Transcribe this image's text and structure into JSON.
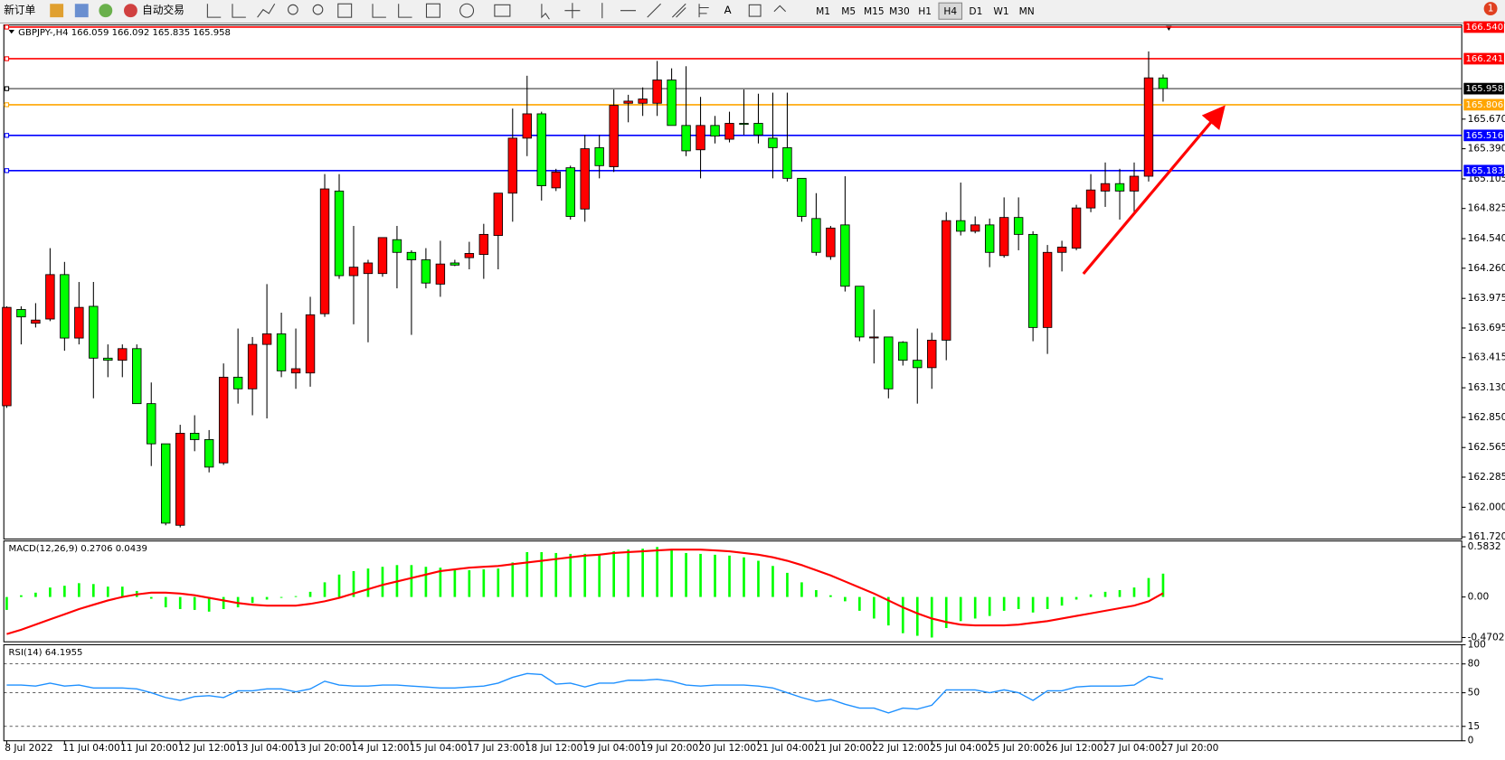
{
  "toolbar": {
    "new_order": "新订单",
    "auto_trading": "自动交易",
    "timeframes": [
      "M1",
      "M5",
      "M15",
      "M30",
      "H1",
      "H4",
      "D1",
      "W1",
      "MN"
    ],
    "active_timeframe": "H4",
    "badge": 1
  },
  "chart_data": [
    {
      "type": "candlestick",
      "title": "GBPJPY-,H4  166.059 166.092 165.835 165.958",
      "categories": [
        "8 Jul 2022",
        null,
        null,
        null,
        "11 Jul 04:00",
        null,
        null,
        null,
        "11 Jul 20:00",
        null,
        null,
        null,
        "12 Jul 12:00",
        null,
        null,
        null,
        "13 Jul 04:00",
        null,
        null,
        null,
        "13 Jul 20:00",
        null,
        null,
        null,
        "14 Jul 12:00",
        null,
        null,
        null,
        "15 Jul 04:00",
        null,
        null,
        null,
        "17 Jul 23:00",
        null,
        null,
        null,
        "18 Jul 12:00",
        null,
        null,
        null,
        "19 Jul 04:00",
        null,
        null,
        null,
        "19 Jul 20:00",
        null,
        null,
        null,
        "20 Jul 12:00",
        null,
        null,
        null,
        "21 Jul 04:00",
        null,
        null,
        null,
        "21 Jul 20:00",
        null,
        null,
        null,
        "22 Jul 12:00",
        null,
        null,
        null,
        "25 Jul 04:00",
        null,
        null,
        null,
        "25 Jul 20:00",
        null,
        null,
        null,
        "26 Jul 12:00",
        null,
        null,
        null,
        "27 Jul 04:00",
        null,
        null,
        null,
        "27 Jul 20:00"
      ],
      "open": [
        162.96,
        163.87,
        163.74,
        163.78,
        164.2,
        163.6,
        163.9,
        163.41,
        163.39,
        163.5,
        162.98,
        162.6,
        161.83,
        162.7,
        162.64,
        162.42,
        163.23,
        163.12,
        163.54,
        163.64,
        163.27,
        163.27,
        163.83,
        164.99,
        164.19,
        164.21,
        164.21,
        164.53,
        164.41,
        164.34,
        164.11,
        164.31,
        164.36,
        164.39,
        164.57,
        164.97,
        165.49,
        165.72,
        165.02,
        165.21,
        164.82,
        165.4,
        165.22,
        165.82,
        165.82,
        165.82,
        166.04,
        165.61,
        165.38,
        165.61,
        165.48,
        165.63,
        165.63,
        165.49,
        165.4,
        165.11,
        164.73,
        164.37,
        164.67,
        164.09,
        163.61,
        163.61,
        163.56,
        163.39,
        163.32,
        163.58,
        164.71,
        164.61,
        164.67,
        164.38,
        164.74,
        164.58,
        163.7,
        164.41,
        164.45,
        164.83,
        164.99,
        165.06,
        164.99,
        165.13,
        166.059
      ],
      "high": [
        163.9,
        163.9,
        163.93,
        164.45,
        164.32,
        164.13,
        164.13,
        163.54,
        163.54,
        163.54,
        163.18,
        162.6,
        162.78,
        162.87,
        162.73,
        163.36,
        163.69,
        163.61,
        164.11,
        163.84,
        163.69,
        163.99,
        165.15,
        165.15,
        164.66,
        164.34,
        164.55,
        164.66,
        164.43,
        164.45,
        164.52,
        164.34,
        164.51,
        164.68,
        164.97,
        165.77,
        166.08,
        165.74,
        165.2,
        165.23,
        165.52,
        165.52,
        165.95,
        165.9,
        165.97,
        166.22,
        166.15,
        166.17,
        165.88,
        165.7,
        165.74,
        165.95,
        165.91,
        165.92,
        165.92,
        165.11,
        164.97,
        164.66,
        165.13,
        164.09,
        163.87,
        163.61,
        163.57,
        163.69,
        163.65,
        164.79,
        165.07,
        164.75,
        164.73,
        164.93,
        164.93,
        164.61,
        164.48,
        164.52,
        164.86,
        165.15,
        165.26,
        165.2,
        165.26,
        166.31,
        166.092
      ],
      "low": [
        162.94,
        163.54,
        163.7,
        163.76,
        163.48,
        163.54,
        163.03,
        163.23,
        163.23,
        162.98,
        162.39,
        161.83,
        161.81,
        162.53,
        162.33,
        162.4,
        162.98,
        162.87,
        162.84,
        163.23,
        163.12,
        163.14,
        163.8,
        164.16,
        163.73,
        163.56,
        164.18,
        164.07,
        163.63,
        164.07,
        163.99,
        164.28,
        164.25,
        164.16,
        164.25,
        164.7,
        165.32,
        164.9,
        164.99,
        164.72,
        164.7,
        165.11,
        165.17,
        165.64,
        165.7,
        165.7,
        165.61,
        165.32,
        165.11,
        165.44,
        165.45,
        165.52,
        165.44,
        165.11,
        165.08,
        164.7,
        164.38,
        164.34,
        164.04,
        163.57,
        163.36,
        163.03,
        163.34,
        162.98,
        163.12,
        163.39,
        164.57,
        164.59,
        164.27,
        164.36,
        164.43,
        163.57,
        163.45,
        164.23,
        164.43,
        164.79,
        164.84,
        164.72,
        164.79,
        165.08,
        165.835
      ],
      "close": [
        163.89,
        163.8,
        163.77,
        164.2,
        163.6,
        163.89,
        163.41,
        163.39,
        163.5,
        162.98,
        162.6,
        161.85,
        162.7,
        162.64,
        162.38,
        163.23,
        163.12,
        163.54,
        163.64,
        163.29,
        163.31,
        163.82,
        165.01,
        164.19,
        164.27,
        164.31,
        164.55,
        164.41,
        164.34,
        164.12,
        164.3,
        164.29,
        164.4,
        164.58,
        164.97,
        165.49,
        165.72,
        165.04,
        165.17,
        164.75,
        165.39,
        165.23,
        165.8,
        165.84,
        165.86,
        166.04,
        165.61,
        165.37,
        165.61,
        165.51,
        165.63,
        165.62,
        165.52,
        165.4,
        165.11,
        164.75,
        164.41,
        164.64,
        164.09,
        163.61,
        163.61,
        163.12,
        163.39,
        163.32,
        163.58,
        164.71,
        164.61,
        164.67,
        164.41,
        164.74,
        164.58,
        163.7,
        164.41,
        164.46,
        164.83,
        165.0,
        165.06,
        164.99,
        165.13,
        166.06,
        165.958
      ],
      "up_color": "#ff0000",
      "down_color": "#00ff00",
      "ylim": [
        161.7,
        166.56
      ],
      "yticks": [
        {
          "value": 165.67,
          "label": "165.670"
        },
        {
          "value": 165.39,
          "label": "165.390"
        },
        {
          "value": 165.105,
          "label": "165.105"
        },
        {
          "value": 164.825,
          "label": "164.825"
        },
        {
          "value": 164.54,
          "label": "164.540"
        },
        {
          "value": 164.26,
          "label": "164.260"
        },
        {
          "value": 163.975,
          "label": "163.975"
        },
        {
          "value": 163.695,
          "label": "163.695"
        },
        {
          "value": 163.415,
          "label": "163.415"
        },
        {
          "value": 163.13,
          "label": "163.130"
        },
        {
          "value": 162.85,
          "label": "162.850"
        },
        {
          "value": 162.565,
          "label": "162.565"
        },
        {
          "value": 162.285,
          "label": "162.285"
        },
        {
          "value": 162.0,
          "label": "162.000"
        },
        {
          "value": 161.72,
          "label": "161.720"
        }
      ],
      "hlines": [
        {
          "value": 166.54,
          "label": "166.540",
          "color": "#ff0000"
        },
        {
          "value": 166.241,
          "label": "166.241",
          "color": "#ff0000"
        },
        {
          "value": 165.958,
          "label": "165.958",
          "color": "#000000"
        },
        {
          "value": 165.806,
          "label": "165.806",
          "color": "#ffa500"
        },
        {
          "value": 165.516,
          "label": "165.516",
          "color": "#0000ff"
        },
        {
          "value": 165.183,
          "label": "165.183",
          "color": "#0000ff"
        }
      ]
    },
    {
      "type": "macd",
      "title": "MACD(12,26,9) 0.2706 0.0439",
      "series": [
        {
          "style": "bar",
          "color": "#00ff00",
          "values": [
            -0.15,
            0.02,
            0.05,
            0.11,
            0.13,
            0.16,
            0.15,
            0.12,
            0.12,
            0.07,
            -0.02,
            -0.12,
            -0.14,
            -0.15,
            -0.17,
            -0.14,
            -0.12,
            -0.07,
            -0.03,
            -0.01,
            0.01,
            0.06,
            0.17,
            0.26,
            0.3,
            0.33,
            0.35,
            0.37,
            0.37,
            0.35,
            0.34,
            0.32,
            0.31,
            0.32,
            0.33,
            0.4,
            0.52,
            0.52,
            0.51,
            0.5,
            0.5,
            0.5,
            0.53,
            0.55,
            0.56,
            0.58,
            0.55,
            0.51,
            0.5,
            0.49,
            0.48,
            0.46,
            0.42,
            0.36,
            0.28,
            0.17,
            0.08,
            0.02,
            -0.05,
            -0.16,
            -0.25,
            -0.33,
            -0.42,
            -0.45,
            -0.47,
            -0.36,
            -0.28,
            -0.25,
            -0.22,
            -0.16,
            -0.14,
            -0.18,
            -0.14,
            -0.1,
            -0.03,
            0.03,
            0.06,
            0.08,
            0.11,
            0.22,
            0.2706
          ]
        },
        {
          "style": "line",
          "color": "#ff0000",
          "values": [
            -0.43,
            -0.38,
            -0.32,
            -0.26,
            -0.2,
            -0.14,
            -0.09,
            -0.04,
            0.0,
            0.03,
            0.05,
            0.05,
            0.04,
            0.02,
            -0.01,
            -0.04,
            -0.07,
            -0.09,
            -0.1,
            -0.1,
            -0.1,
            -0.08,
            -0.05,
            -0.01,
            0.04,
            0.09,
            0.14,
            0.18,
            0.22,
            0.26,
            0.3,
            0.32,
            0.34,
            0.35,
            0.36,
            0.38,
            0.4,
            0.42,
            0.44,
            0.46,
            0.48,
            0.49,
            0.51,
            0.52,
            0.53,
            0.54,
            0.55,
            0.55,
            0.55,
            0.54,
            0.53,
            0.51,
            0.49,
            0.46,
            0.42,
            0.37,
            0.31,
            0.25,
            0.18,
            0.11,
            0.04,
            -0.04,
            -0.12,
            -0.19,
            -0.25,
            -0.29,
            -0.32,
            -0.33,
            -0.33,
            -0.33,
            -0.32,
            -0.3,
            -0.28,
            -0.25,
            -0.22,
            -0.19,
            -0.16,
            -0.13,
            -0.1,
            -0.05,
            0.0439
          ]
        }
      ],
      "ylim": [
        -0.52,
        0.65
      ],
      "yticks": [
        {
          "value": 0.5832,
          "label": "0.5832"
        },
        {
          "value": 0,
          "label": "0.00"
        },
        {
          "value": -0.4702,
          "label": "-0.4702"
        }
      ]
    },
    {
      "type": "line",
      "title": "RSI(14) 64.1955",
      "color": "#1e90ff",
      "values": [
        58,
        58,
        57,
        60,
        57,
        58,
        55,
        55,
        55,
        54,
        50,
        45,
        42,
        46,
        47,
        45,
        52,
        52,
        54,
        54,
        51,
        54,
        62,
        58,
        57,
        57,
        58,
        58,
        57,
        56,
        55,
        55,
        56,
        57,
        60,
        66,
        70,
        69,
        59,
        60,
        56,
        60,
        60,
        63,
        63,
        64,
        62,
        58,
        57,
        58,
        58,
        58,
        57,
        55,
        50,
        45,
        41,
        43,
        38,
        34,
        34,
        29,
        34,
        33,
        37,
        53,
        53,
        53,
        50,
        53,
        50,
        42,
        52,
        52,
        56,
        57,
        57,
        57,
        58,
        67,
        64.1955
      ],
      "ylim": [
        0,
        100
      ],
      "yticks": [
        100,
        80,
        50,
        15,
        0
      ],
      "grid": true
    }
  ]
}
